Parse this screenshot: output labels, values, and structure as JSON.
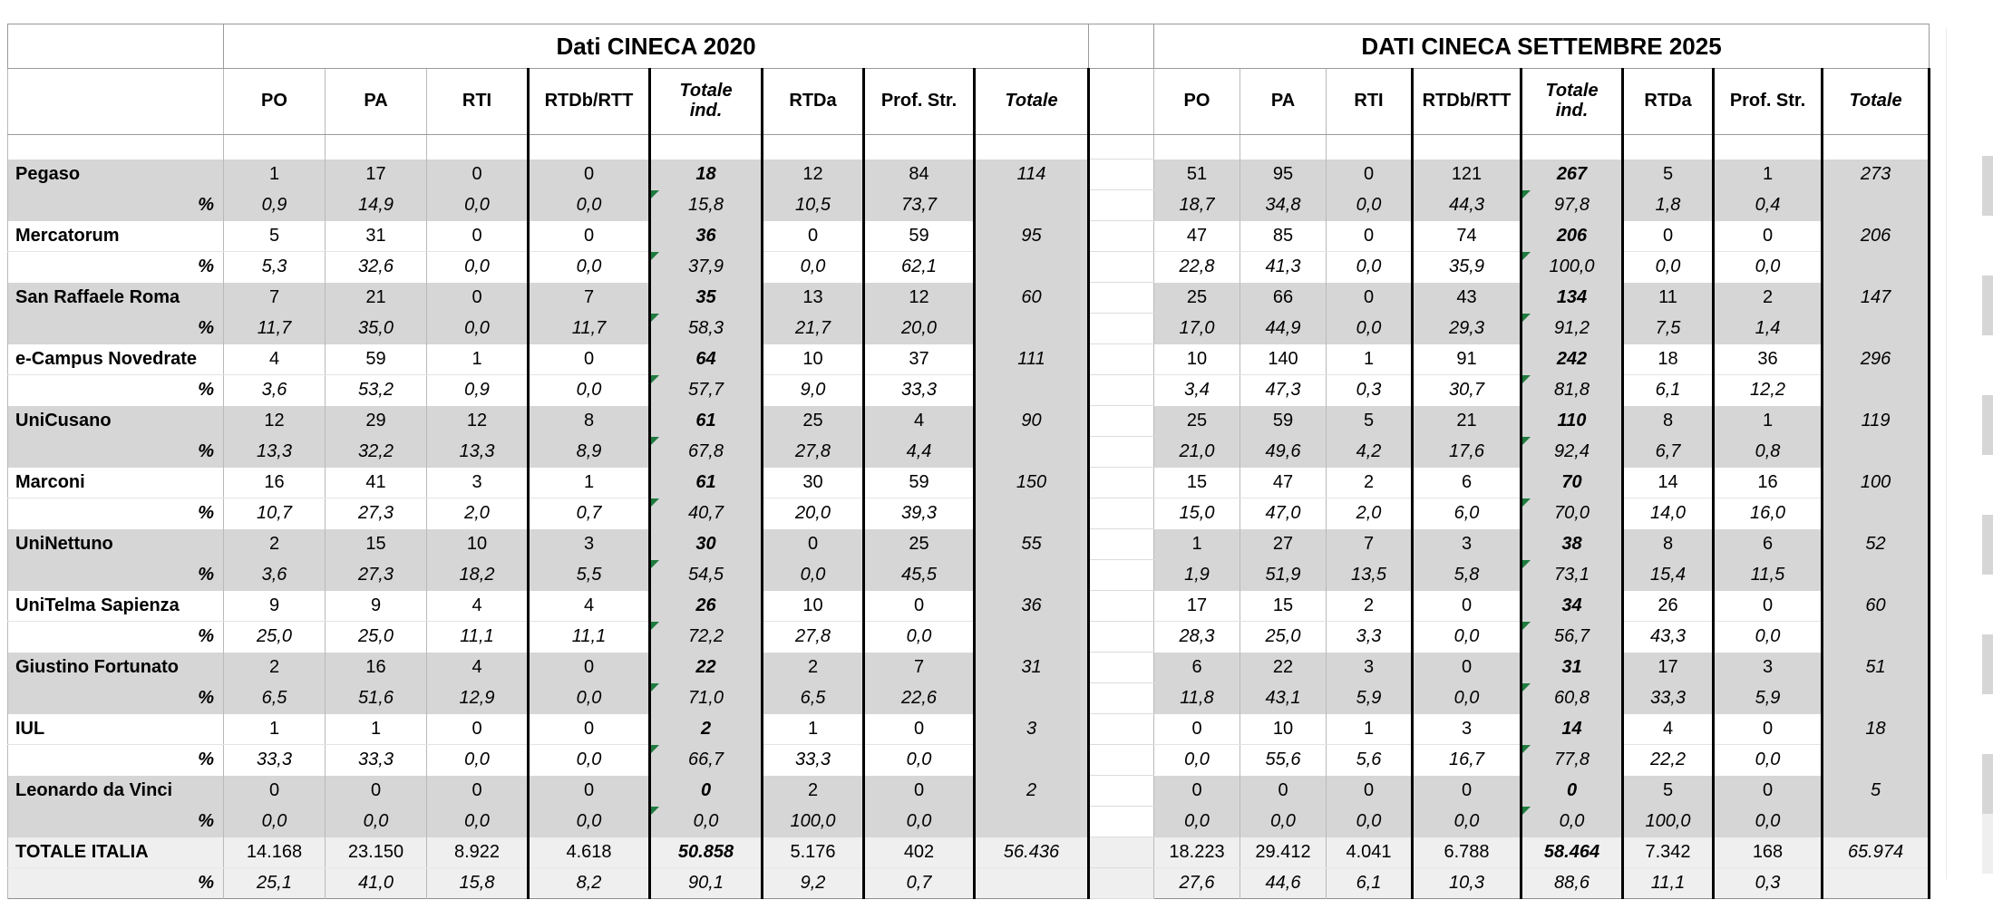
{
  "titles": {
    "left": "Dati CINECA 2020",
    "right": "DATI CINECA SETTEMBRE 2025"
  },
  "columns": [
    "PO",
    "PA",
    "RTI",
    "RTDb/RTT",
    "Totale\nind.",
    "RTDa",
    "Prof. Str.",
    "Totale"
  ],
  "percent_label": "%",
  "colors": {
    "band_grey": "#d6d6d6",
    "total_row_grey": "#efefef",
    "flag_green": "#1e7b3e",
    "thick_border": "#000000"
  },
  "rows": [
    {
      "name": "Pegaso",
      "shaded": true,
      "s2020": {
        "values": [
          "1",
          "17",
          "0",
          "0",
          "18",
          "12",
          "84",
          "114"
        ],
        "pct": [
          "0,9",
          "14,9",
          "0,0",
          "0,0",
          "15,8",
          "10,5",
          "73,7",
          ""
        ]
      },
      "s2025": {
        "values": [
          "51",
          "95",
          "0",
          "121",
          "267",
          "5",
          "1",
          "273"
        ],
        "pct": [
          "18,7",
          "34,8",
          "0,0",
          "44,3",
          "97,8",
          "1,8",
          "0,4",
          ""
        ]
      }
    },
    {
      "name": "Mercatorum",
      "shaded": false,
      "s2020": {
        "values": [
          "5",
          "31",
          "0",
          "0",
          "36",
          "0",
          "59",
          "95"
        ],
        "pct": [
          "5,3",
          "32,6",
          "0,0",
          "0,0",
          "37,9",
          "0,0",
          "62,1",
          ""
        ]
      },
      "s2025": {
        "values": [
          "47",
          "85",
          "0",
          "74",
          "206",
          "0",
          "0",
          "206"
        ],
        "pct": [
          "22,8",
          "41,3",
          "0,0",
          "35,9",
          "100,0",
          "0,0",
          "0,0",
          ""
        ]
      }
    },
    {
      "name": "San Raffaele Roma",
      "shaded": true,
      "s2020": {
        "values": [
          "7",
          "21",
          "0",
          "7",
          "35",
          "13",
          "12",
          "60"
        ],
        "pct": [
          "11,7",
          "35,0",
          "0,0",
          "11,7",
          "58,3",
          "21,7",
          "20,0",
          ""
        ]
      },
      "s2025": {
        "values": [
          "25",
          "66",
          "0",
          "43",
          "134",
          "11",
          "2",
          "147"
        ],
        "pct": [
          "17,0",
          "44,9",
          "0,0",
          "29,3",
          "91,2",
          "7,5",
          "1,4",
          ""
        ]
      }
    },
    {
      "name": "e-Campus Novedrate",
      "shaded": false,
      "s2020": {
        "values": [
          "4",
          "59",
          "1",
          "0",
          "64",
          "10",
          "37",
          "111"
        ],
        "pct": [
          "3,6",
          "53,2",
          "0,9",
          "0,0",
          "57,7",
          "9,0",
          "33,3",
          ""
        ]
      },
      "s2025": {
        "values": [
          "10",
          "140",
          "1",
          "91",
          "242",
          "18",
          "36",
          "296"
        ],
        "pct": [
          "3,4",
          "47,3",
          "0,3",
          "30,7",
          "81,8",
          "6,1",
          "12,2",
          ""
        ]
      }
    },
    {
      "name": "UniCusano",
      "shaded": true,
      "s2020": {
        "values": [
          "12",
          "29",
          "12",
          "8",
          "61",
          "25",
          "4",
          "90"
        ],
        "pct": [
          "13,3",
          "32,2",
          "13,3",
          "8,9",
          "67,8",
          "27,8",
          "4,4",
          ""
        ]
      },
      "s2025": {
        "values": [
          "25",
          "59",
          "5",
          "21",
          "110",
          "8",
          "1",
          "119"
        ],
        "pct": [
          "21,0",
          "49,6",
          "4,2",
          "17,6",
          "92,4",
          "6,7",
          "0,8",
          ""
        ]
      }
    },
    {
      "name": "Marconi",
      "shaded": false,
      "s2020": {
        "values": [
          "16",
          "41",
          "3",
          "1",
          "61",
          "30",
          "59",
          "150"
        ],
        "pct": [
          "10,7",
          "27,3",
          "2,0",
          "0,7",
          "40,7",
          "20,0",
          "39,3",
          ""
        ]
      },
      "s2025": {
        "values": [
          "15",
          "47",
          "2",
          "6",
          "70",
          "14",
          "16",
          "100"
        ],
        "pct": [
          "15,0",
          "47,0",
          "2,0",
          "6,0",
          "70,0",
          "14,0",
          "16,0",
          ""
        ]
      }
    },
    {
      "name": "UniNettuno",
      "shaded": true,
      "s2020": {
        "values": [
          "2",
          "15",
          "10",
          "3",
          "30",
          "0",
          "25",
          "55"
        ],
        "pct": [
          "3,6",
          "27,3",
          "18,2",
          "5,5",
          "54,5",
          "0,0",
          "45,5",
          ""
        ]
      },
      "s2025": {
        "values": [
          "1",
          "27",
          "7",
          "3",
          "38",
          "8",
          "6",
          "52"
        ],
        "pct": [
          "1,9",
          "51,9",
          "13,5",
          "5,8",
          "73,1",
          "15,4",
          "11,5",
          ""
        ]
      }
    },
    {
      "name": "UniTelma Sapienza",
      "shaded": false,
      "s2020": {
        "values": [
          "9",
          "9",
          "4",
          "4",
          "26",
          "10",
          "0",
          "36"
        ],
        "pct": [
          "25,0",
          "25,0",
          "11,1",
          "11,1",
          "72,2",
          "27,8",
          "0,0",
          ""
        ]
      },
      "s2025": {
        "values": [
          "17",
          "15",
          "2",
          "0",
          "34",
          "26",
          "0",
          "60"
        ],
        "pct": [
          "28,3",
          "25,0",
          "3,3",
          "0,0",
          "56,7",
          "43,3",
          "0,0",
          ""
        ]
      }
    },
    {
      "name": "Giustino Fortunato",
      "shaded": true,
      "s2020": {
        "values": [
          "2",
          "16",
          "4",
          "0",
          "22",
          "2",
          "7",
          "31"
        ],
        "pct": [
          "6,5",
          "51,6",
          "12,9",
          "0,0",
          "71,0",
          "6,5",
          "22,6",
          ""
        ]
      },
      "s2025": {
        "values": [
          "6",
          "22",
          "3",
          "0",
          "31",
          "17",
          "3",
          "51"
        ],
        "pct": [
          "11,8",
          "43,1",
          "5,9",
          "0,0",
          "60,8",
          "33,3",
          "5,9",
          ""
        ]
      }
    },
    {
      "name": "IUL",
      "shaded": false,
      "s2020": {
        "values": [
          "1",
          "1",
          "0",
          "0",
          "2",
          "1",
          "0",
          "3"
        ],
        "pct": [
          "33,3",
          "33,3",
          "0,0",
          "0,0",
          "66,7",
          "33,3",
          "0,0",
          ""
        ]
      },
      "s2025": {
        "values": [
          "0",
          "10",
          "1",
          "3",
          "14",
          "4",
          "0",
          "18"
        ],
        "pct": [
          "0,0",
          "55,6",
          "5,6",
          "16,7",
          "77,8",
          "22,2",
          "0,0",
          ""
        ]
      }
    },
    {
      "name": "Leonardo da Vinci",
      "shaded": true,
      "s2020": {
        "values": [
          "0",
          "0",
          "0",
          "0",
          "0",
          "2",
          "0",
          "2"
        ],
        "pct": [
          "0,0",
          "0,0",
          "0,0",
          "0,0",
          "0,0",
          "100,0",
          "0,0",
          ""
        ]
      },
      "s2025": {
        "values": [
          "0",
          "0",
          "0",
          "0",
          "0",
          "5",
          "0",
          "5"
        ],
        "pct": [
          "0,0",
          "0,0",
          "0,0",
          "0,0",
          "0,0",
          "100,0",
          "0,0",
          ""
        ]
      }
    }
  ],
  "total_row": {
    "name": "TOTALE ITALIA",
    "s2020": {
      "values": [
        "14.168",
        "23.150",
        "8.922",
        "4.618",
        "50.858",
        "5.176",
        "402",
        "56.436"
      ],
      "pct": [
        "25,1",
        "41,0",
        "15,8",
        "8,2",
        "90,1",
        "9,2",
        "0,7",
        ""
      ]
    },
    "s2025": {
      "values": [
        "18.223",
        "29.412",
        "4.041",
        "6.788",
        "58.464",
        "7.342",
        "168",
        "65.974"
      ],
      "pct": [
        "27,6",
        "44,6",
        "6,1",
        "10,3",
        "88,6",
        "11,1",
        "0,3",
        ""
      ]
    }
  }
}
